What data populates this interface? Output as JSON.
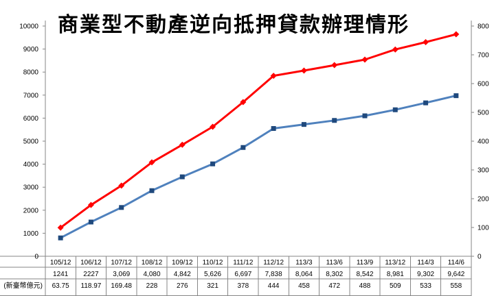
{
  "chart_data": {
    "type": "line",
    "title": "商業型不動產逆向抵押貸款辦理情形",
    "categories": [
      "105/12",
      "106/12",
      "107/12",
      "108/12",
      "109/12",
      "110/12",
      "111/12",
      "112/12",
      "113/3",
      "113/6",
      "113/9",
      "113/12",
      "114/3",
      "114/6"
    ],
    "series": [
      {
        "name": "",
        "axis": "left",
        "color": "#ff0000",
        "marker": "diamond",
        "values": [
          1241,
          2227,
          3069,
          4080,
          4842,
          5626,
          6697,
          7838,
          8064,
          8302,
          8542,
          8981,
          9302,
          9642
        ],
        "labels": [
          "1241",
          "2227",
          "3,069",
          "4,080",
          "4,842",
          "5,626",
          "6,697",
          "7,838",
          "8,064",
          "8,302",
          "8,542",
          "8,981",
          "9,302",
          "9,642"
        ]
      },
      {
        "name": "(新臺幣億元)",
        "axis": "right",
        "color": "#4f81bd",
        "marker": "square",
        "values": [
          63.75,
          118.97,
          169.48,
          228,
          276,
          321,
          378,
          444,
          458,
          472,
          488,
          509,
          533,
          558
        ],
        "labels": [
          "63.75",
          "118.97",
          "169.48",
          "228",
          "276",
          "321",
          "378",
          "444",
          "458",
          "472",
          "488",
          "509",
          "533",
          "558"
        ]
      }
    ],
    "y_left": {
      "min": 0,
      "max": 10000,
      "step": 1000,
      "ticks": [
        "0",
        "1000",
        "2000",
        "3000",
        "4000",
        "5000",
        "6000",
        "7000",
        "8000",
        "9000",
        "10000"
      ]
    },
    "y_right": {
      "min": 0,
      "max": 800,
      "step": 100,
      "ticks": [
        "0",
        "100",
        "200",
        "300",
        "400",
        "500",
        "600",
        "700",
        "800"
      ]
    },
    "grid": false,
    "legend": "none"
  },
  "colors": {
    "series1": "#ff0000",
    "series2": "#4f81bd",
    "marker2": "#1f497d"
  }
}
